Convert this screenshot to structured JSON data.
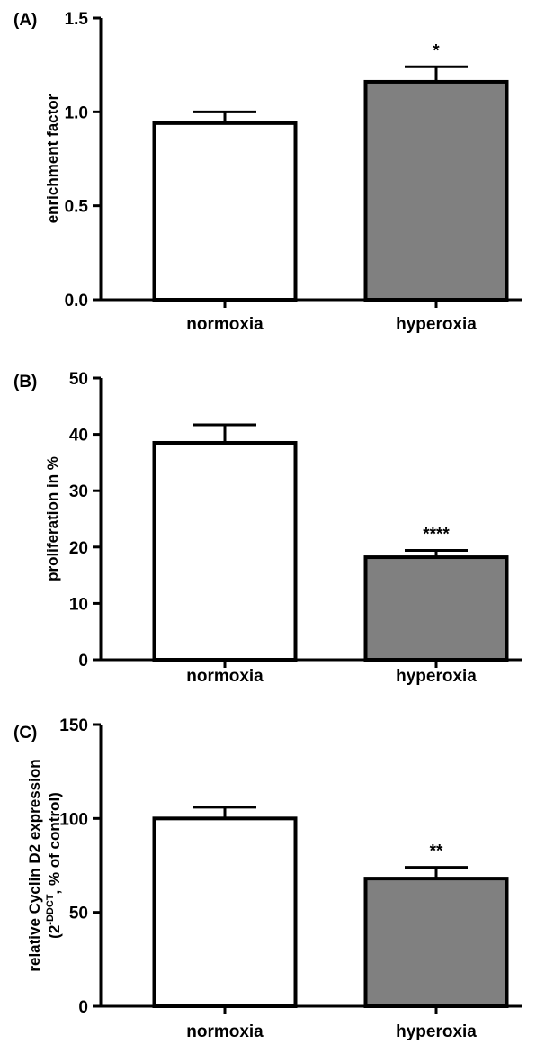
{
  "figure": {
    "background": "#ffffff",
    "bar_colors": {
      "normoxia": "#ffffff",
      "hyperoxia": "#808080"
    }
  },
  "chart_data": [
    {
      "type": "bar",
      "panel_label": "(A)",
      "categories": [
        "normoxia",
        "hyperoxia"
      ],
      "values": [
        0.94,
        1.16
      ],
      "error": [
        0.06,
        0.08
      ],
      "significance": [
        "",
        "*"
      ],
      "ylabel": "enrichment factor",
      "ylim": [
        0,
        1.5
      ],
      "yticks": [
        "0.0",
        "0.5",
        "1.0",
        "1.5"
      ],
      "ytick_values": [
        0,
        0.5,
        1.0,
        1.5
      ]
    },
    {
      "type": "bar",
      "panel_label": "(B)",
      "categories": [
        "normoxia",
        "hyperoxia"
      ],
      "values": [
        38.5,
        18.2
      ],
      "error": [
        3.2,
        1.2
      ],
      "significance": [
        "",
        "****"
      ],
      "ylabel": "proliferation in %",
      "ylim": [
        0,
        50
      ],
      "yticks": [
        "0",
        "10",
        "20",
        "30",
        "40",
        "50"
      ],
      "ytick_values": [
        0,
        10,
        20,
        30,
        40,
        50
      ]
    },
    {
      "type": "bar",
      "panel_label": "(C)",
      "categories": [
        "normoxia",
        "hyperoxia"
      ],
      "values": [
        100,
        68
      ],
      "error": [
        6,
        6
      ],
      "significance": [
        "",
        "**"
      ],
      "ylabel": "relative Cyclin D2 expression",
      "ylabel2_base": "(2",
      "ylabel2_sup": "-DDCT",
      "ylabel2_rest": ", % of control)",
      "ylim": [
        0,
        150
      ],
      "yticks": [
        "0",
        "50",
        "100",
        "150"
      ],
      "ytick_values": [
        0,
        50,
        100,
        150
      ]
    }
  ]
}
